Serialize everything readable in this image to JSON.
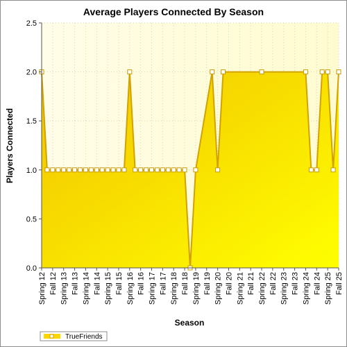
{
  "chart_data": {
    "type": "area",
    "title": "Average Players Connected By Season",
    "xlabel": "Season",
    "ylabel": "Players Connected",
    "ylim": [
      0,
      2.5
    ],
    "yticks": [
      "0.0",
      "0.5",
      "1.0",
      "1.5",
      "2.0",
      "2.5"
    ],
    "grid": true,
    "legend_position": "bottom-left",
    "categories": [
      "Spring 12",
      "Fall 12",
      "Spring 13",
      "Fall 13",
      "Spring 14",
      "Fall 14",
      "Spring 15",
      "Fall 15",
      "Spring 16",
      "Fall 16",
      "Spring 17",
      "Fall 17",
      "Spring 18",
      "Fall 18",
      "Spring 19",
      "Fall 19",
      "Spring 20",
      "Fall 20",
      "Spring 21",
      "Fall 21",
      "Spring 22",
      "Fall 22",
      "Spring 23",
      "Fall 23",
      "Spring 24",
      "Fall 24",
      "Spring 25",
      "Fall 25"
    ],
    "series": [
      {
        "name": "TrueFriends",
        "color": "#ffd700",
        "line_color": "#d2a200",
        "points": [
          {
            "x": 0.0,
            "y": 2.0,
            "marker": true
          },
          {
            "x": 0.5,
            "y": 1.0,
            "marker": true
          },
          {
            "x": 1.0,
            "y": 1.0,
            "marker": true
          },
          {
            "x": 1.5,
            "y": 1.0,
            "marker": true
          },
          {
            "x": 2.0,
            "y": 1.0,
            "marker": true
          },
          {
            "x": 2.5,
            "y": 1.0,
            "marker": true
          },
          {
            "x": 3.0,
            "y": 1.0,
            "marker": true
          },
          {
            "x": 3.5,
            "y": 1.0,
            "marker": true
          },
          {
            "x": 4.0,
            "y": 1.0,
            "marker": true
          },
          {
            "x": 4.5,
            "y": 1.0,
            "marker": true
          },
          {
            "x": 5.0,
            "y": 1.0,
            "marker": true
          },
          {
            "x": 5.5,
            "y": 1.0,
            "marker": true
          },
          {
            "x": 6.0,
            "y": 1.0,
            "marker": true
          },
          {
            "x": 6.5,
            "y": 1.0,
            "marker": true
          },
          {
            "x": 7.0,
            "y": 1.0,
            "marker": true
          },
          {
            "x": 7.5,
            "y": 1.0,
            "marker": true
          },
          {
            "x": 8.0,
            "y": 2.0,
            "marker": true
          },
          {
            "x": 8.5,
            "y": 1.0,
            "marker": true
          },
          {
            "x": 9.0,
            "y": 1.0,
            "marker": true
          },
          {
            "x": 9.5,
            "y": 1.0,
            "marker": true
          },
          {
            "x": 10.0,
            "y": 1.0,
            "marker": true
          },
          {
            "x": 10.5,
            "y": 1.0,
            "marker": true
          },
          {
            "x": 11.0,
            "y": 1.0,
            "marker": true
          },
          {
            "x": 11.5,
            "y": 1.0,
            "marker": true
          },
          {
            "x": 12.0,
            "y": 1.0,
            "marker": true
          },
          {
            "x": 12.5,
            "y": 1.0,
            "marker": true
          },
          {
            "x": 13.0,
            "y": 1.0,
            "marker": true
          },
          {
            "x": 13.5,
            "y": 0.0,
            "marker": true
          },
          {
            "x": 14.0,
            "y": 1.0,
            "marker": true
          },
          {
            "x": 15.5,
            "y": 2.0,
            "marker": true
          },
          {
            "x": 16.0,
            "y": 1.0,
            "marker": true
          },
          {
            "x": 16.5,
            "y": 2.0,
            "marker": true
          },
          {
            "x": 17.0,
            "y": 2.0,
            "marker": false
          },
          {
            "x": 20.0,
            "y": 2.0,
            "marker": true
          },
          {
            "x": 23.0,
            "y": 2.0,
            "marker": false
          },
          {
            "x": 24.0,
            "y": 2.0,
            "marker": true
          },
          {
            "x": 24.5,
            "y": 1.0,
            "marker": true
          },
          {
            "x": 25.0,
            "y": 1.0,
            "marker": true
          },
          {
            "x": 25.5,
            "y": 2.0,
            "marker": true
          },
          {
            "x": 26.0,
            "y": 2.0,
            "marker": true
          },
          {
            "x": 26.5,
            "y": 1.0,
            "marker": true
          },
          {
            "x": 27.0,
            "y": 2.0,
            "marker": true
          }
        ]
      }
    ]
  }
}
